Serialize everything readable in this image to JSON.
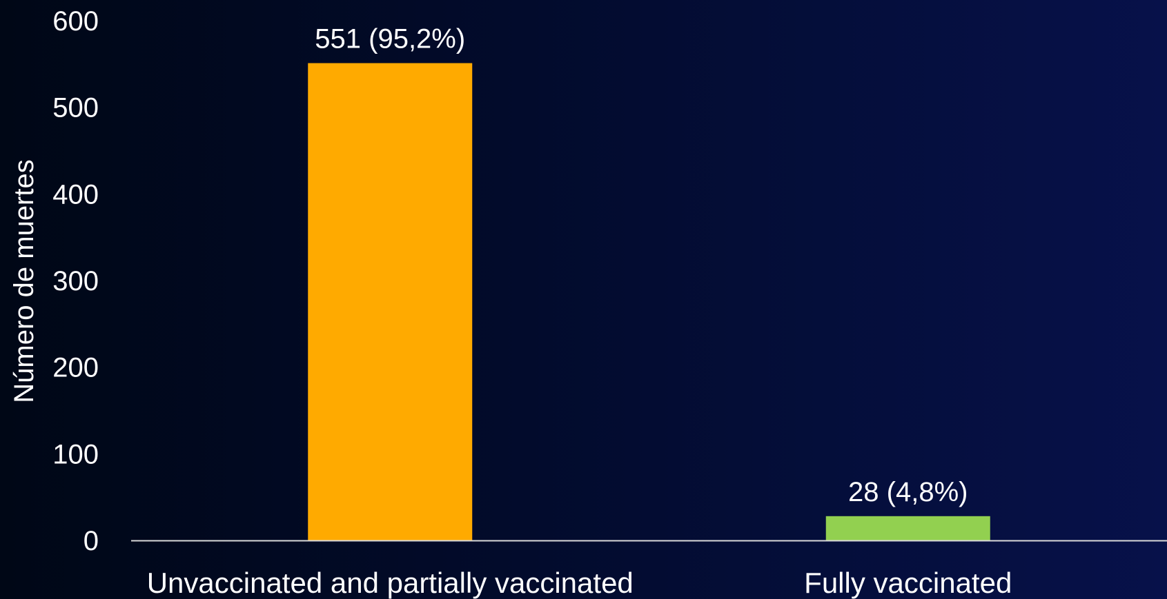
{
  "chart_data": {
    "type": "bar",
    "title": "",
    "xlabel": "",
    "ylabel": "Número de muertes",
    "ylim": [
      0,
      600
    ],
    "yticks": [
      0,
      100,
      200,
      300,
      400,
      500,
      600
    ],
    "categories": [
      "Unvaccinated and partially vaccinated",
      "Fully vaccinated"
    ],
    "values": [
      551,
      28
    ],
    "data_labels": [
      "551 (95,2%)",
      "28 (4,8%)"
    ],
    "bar_colors": [
      "#FFAA00",
      "#92D050"
    ],
    "grid": false,
    "legend": "none"
  },
  "colors": {
    "background_left": "#000716",
    "background_right": "#07114a",
    "axis_line": "#d9d9d9",
    "text": "#ffffff"
  }
}
